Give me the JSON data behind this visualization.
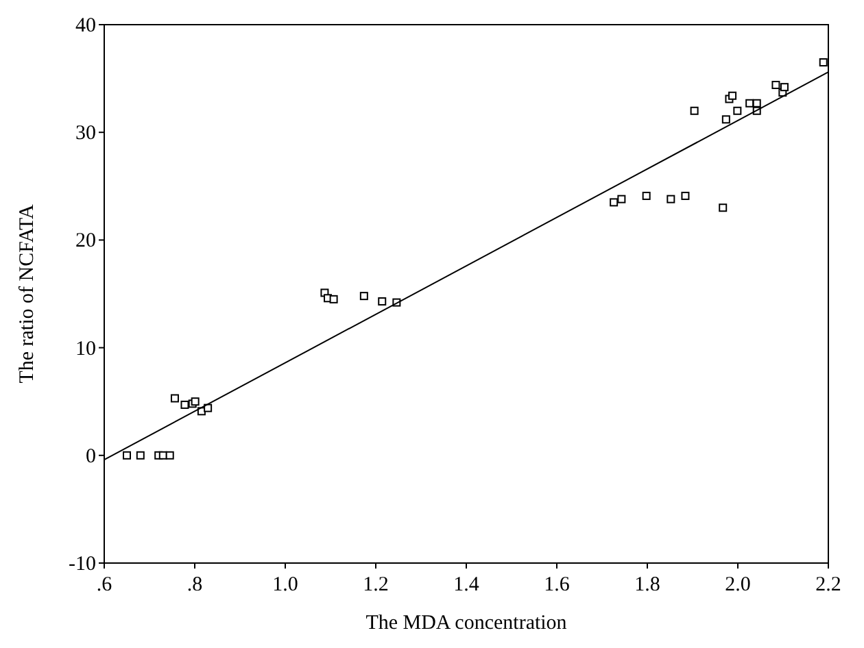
{
  "chart_data": {
    "type": "scatter",
    "xlabel": "The MDA concentration",
    "ylabel": "The ratio of NCFATA",
    "xlim": [
      0.6,
      2.2
    ],
    "xticks": [
      {
        "value": 0.6,
        "label": ".6"
      },
      {
        "value": 0.8,
        "label": ".8"
      },
      {
        "value": 1.0,
        "label": "1.0"
      },
      {
        "value": 1.2,
        "label": "1.2"
      },
      {
        "value": 1.4,
        "label": "1.4"
      },
      {
        "value": 1.6,
        "label": "1.6"
      },
      {
        "value": 1.8,
        "label": "1.8"
      },
      {
        "value": 2.0,
        "label": "2.0"
      },
      {
        "value": 2.2,
        "label": "2.2"
      }
    ],
    "ylim": [
      -10,
      40
    ],
    "yticks": [
      -10,
      0,
      10,
      20,
      30,
      40
    ],
    "grid": false,
    "marker": "square",
    "series": [
      {
        "type": "scatter",
        "color": "#000000",
        "x": [
          0.65,
          0.68,
          0.72,
          0.73,
          0.745,
          0.756,
          0.778,
          0.795,
          0.801,
          0.815,
          0.829,
          1.087,
          1.094,
          1.107,
          1.174,
          1.214,
          1.246,
          1.726,
          1.743,
          1.798,
          1.852,
          1.884,
          1.967,
          1.904,
          1.974,
          1.981,
          1.988,
          1.999,
          2.026,
          2.042,
          2.042,
          2.084,
          2.099,
          2.103,
          2.189
        ],
        "values": [
          0,
          0,
          0,
          0,
          0,
          5.3,
          4.7,
          4.8,
          5.0,
          4.1,
          4.4,
          15.1,
          14.6,
          14.5,
          14.8,
          14.3,
          14.2,
          23.5,
          23.8,
          24.1,
          23.8,
          24.1,
          23.0,
          32.0,
          31.2,
          33.1,
          33.4,
          32.0,
          32.7,
          32.7,
          32.0,
          34.4,
          33.7,
          34.2,
          36.5
        ]
      },
      {
        "type": "line",
        "color": "#000000",
        "marker": "none",
        "x": [
          0.6,
          2.2
        ],
        "values": [
          -0.4,
          35.6
        ]
      }
    ]
  }
}
